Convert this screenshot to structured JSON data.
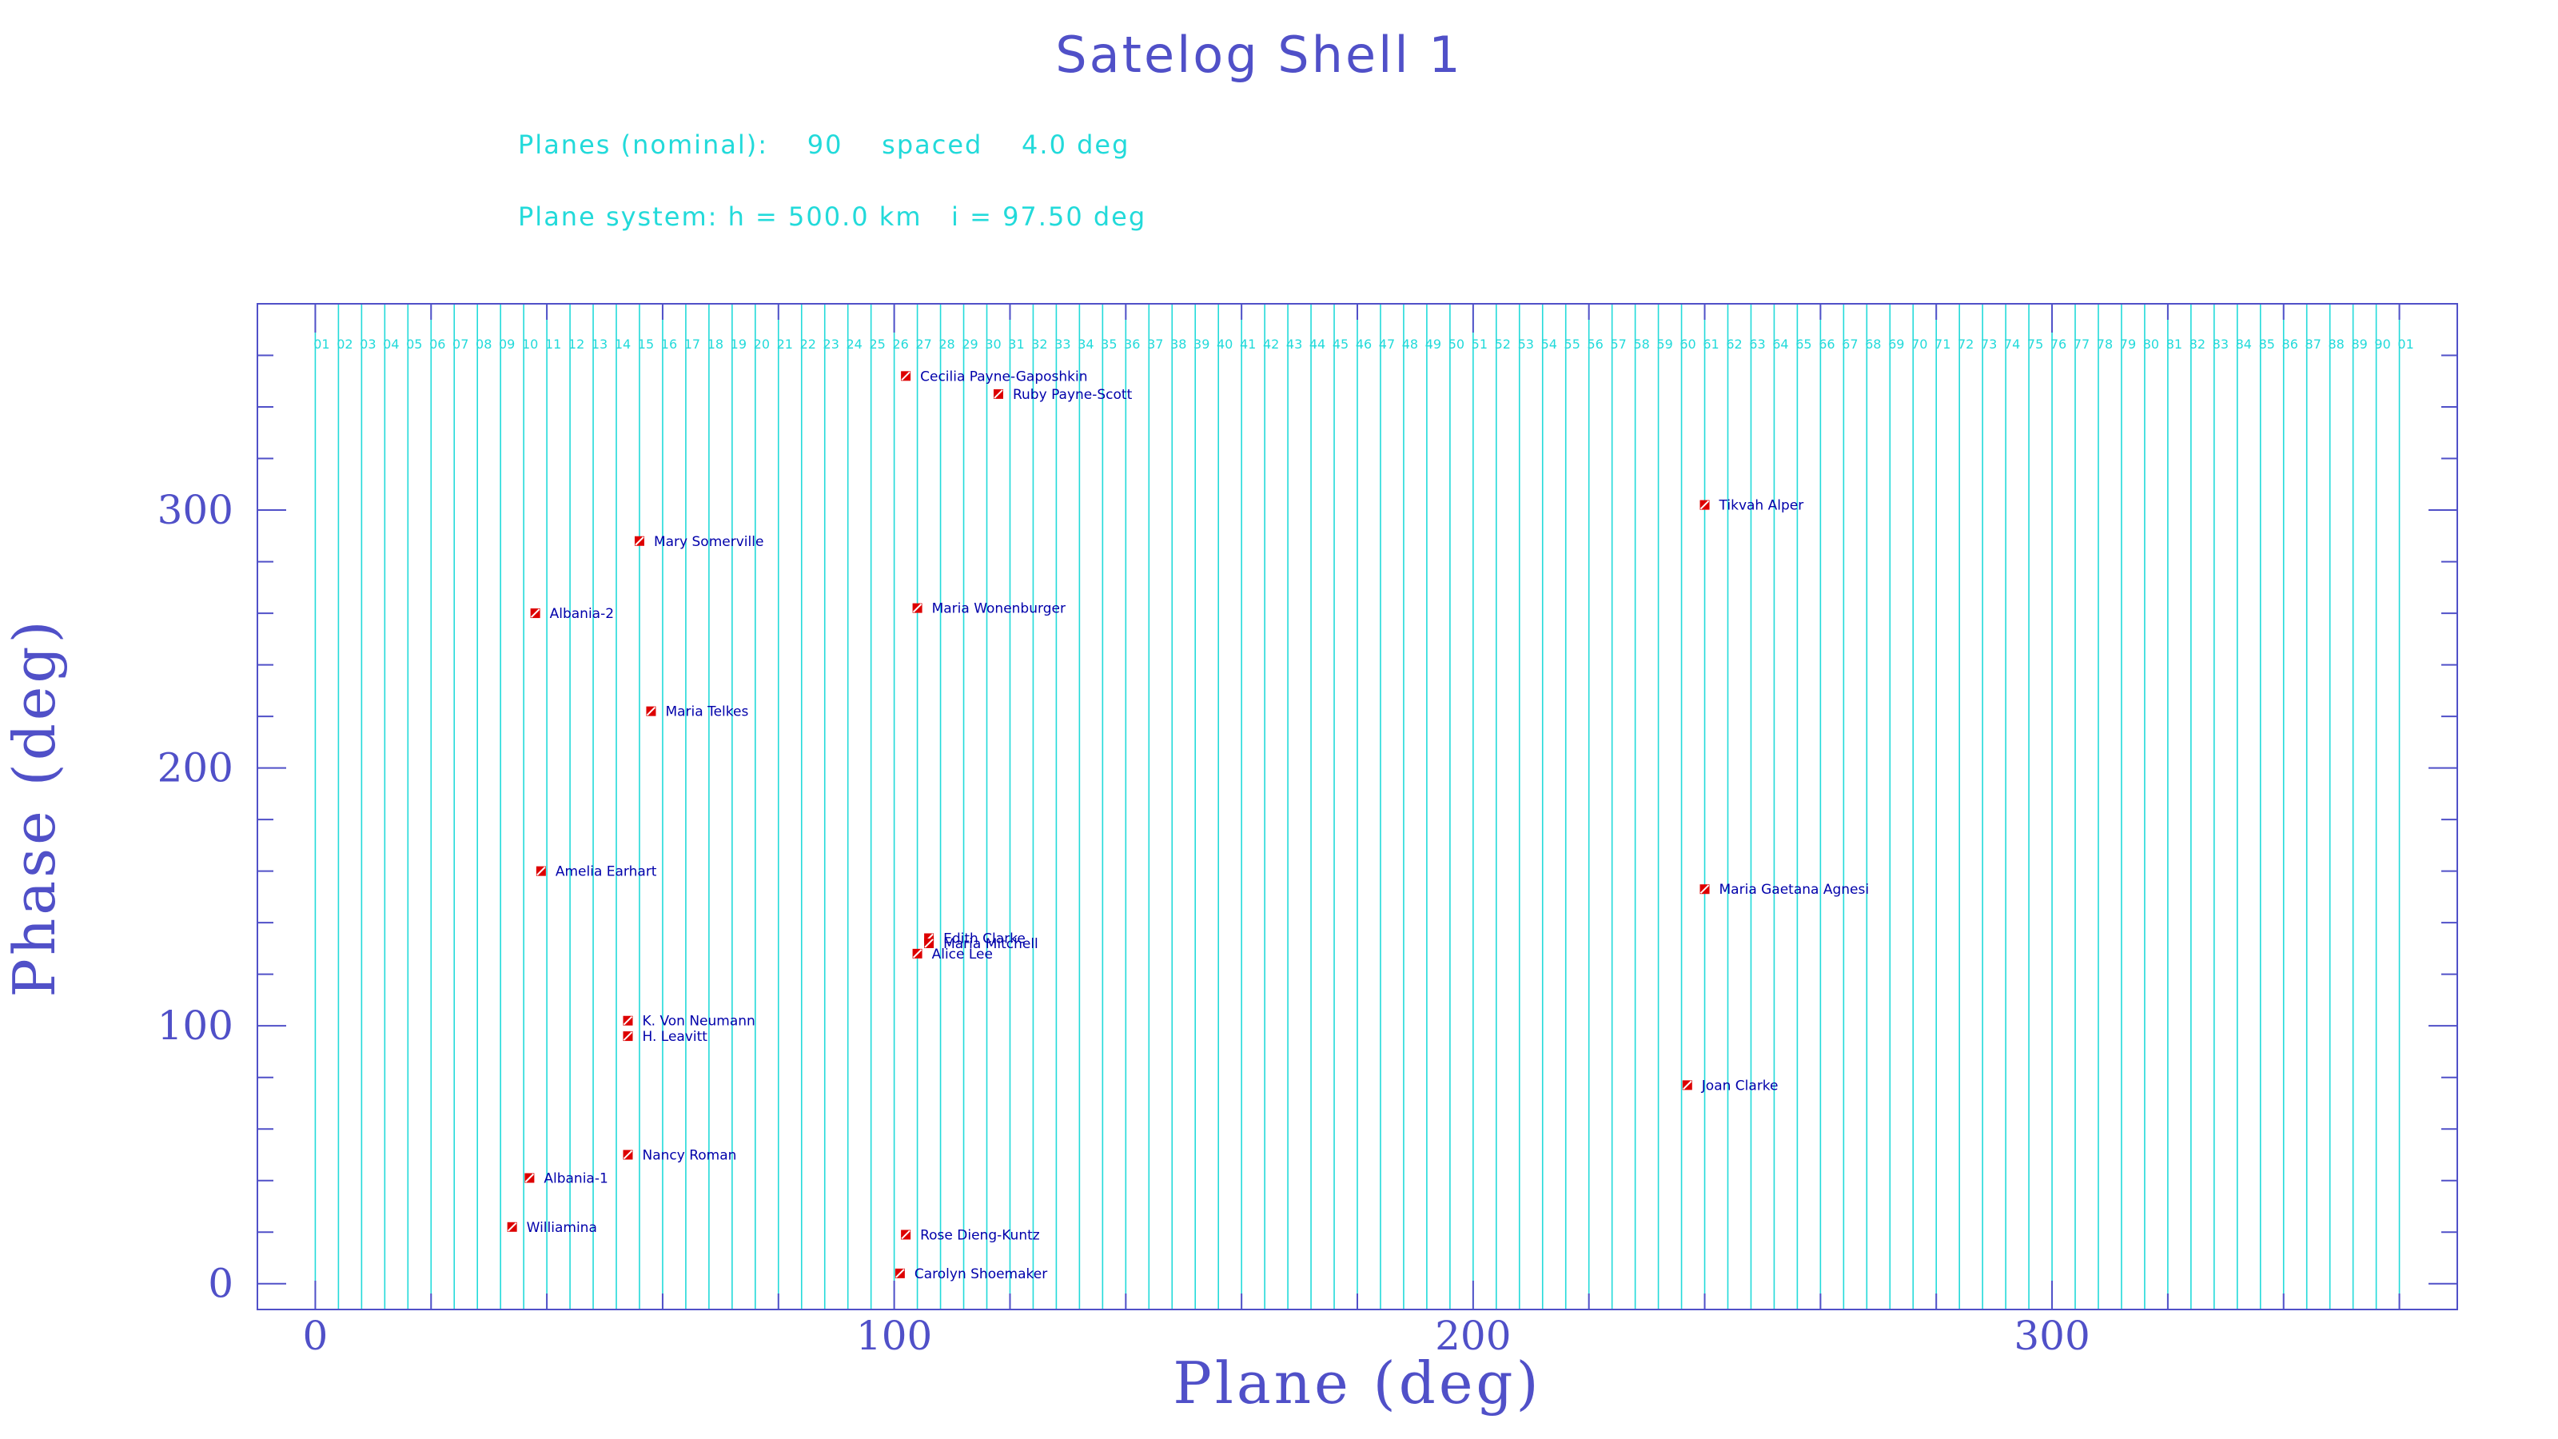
{
  "chart_data": {
    "type": "scatter",
    "title": "Satelog Shell 1",
    "info_lines": [
      "Planes (nominal):    90    spaced    4.0 deg",
      "Plane system: h = 500.0 km   i = 97.50 deg"
    ],
    "xlabel": "Plane (deg)",
    "ylabel": "Phase (deg)",
    "xlim": [
      -10,
      370
    ],
    "ylim": [
      -10,
      380
    ],
    "x_ticks": [
      0,
      100,
      200,
      300
    ],
    "y_ticks": [
      0,
      100,
      200,
      300
    ],
    "x_minor_step": 20,
    "y_minor_step": 20,
    "plane_spacing": 4,
    "plane_labels": [
      "01",
      "02",
      "03",
      "04",
      "05",
      "06",
      "07",
      "08",
      "09",
      "10",
      "11",
      "12",
      "13",
      "14",
      "15",
      "16",
      "17",
      "18",
      "19",
      "20",
      "21",
      "22",
      "23",
      "24",
      "25",
      "26",
      "27",
      "28",
      "29",
      "30",
      "31",
      "32",
      "33",
      "34",
      "35",
      "36",
      "37",
      "38",
      "39",
      "40",
      "41",
      "42",
      "43",
      "44",
      "45",
      "46",
      "47",
      "48",
      "49",
      "50",
      "51",
      "52",
      "53",
      "54",
      "55",
      "56",
      "57",
      "58",
      "59",
      "60",
      "61",
      "62",
      "63",
      "64",
      "65",
      "66",
      "67",
      "68",
      "69",
      "70",
      "71",
      "72",
      "73",
      "74",
      "75",
      "76",
      "77",
      "78",
      "79",
      "80",
      "81",
      "82",
      "83",
      "84",
      "85",
      "86",
      "87",
      "88",
      "89",
      "90",
      "01"
    ],
    "points": [
      {
        "name": "Cecilia Payne-Gaposhkin",
        "x": 102,
        "y": 352
      },
      {
        "name": "Ruby Payne-Scott",
        "x": 118,
        "y": 345
      },
      {
        "name": "Tikvah Alper",
        "x": 240,
        "y": 302
      },
      {
        "name": "Mary Somerville",
        "x": 56,
        "y": 288
      },
      {
        "name": "Maria Wonenburger",
        "x": 104,
        "y": 262
      },
      {
        "name": "Albania-2",
        "x": 38,
        "y": 260
      },
      {
        "name": "Maria Telkes",
        "x": 58,
        "y": 222
      },
      {
        "name": "Amelia Earhart",
        "x": 39,
        "y": 160
      },
      {
        "name": "Maria Gaetana Agnesi",
        "x": 240,
        "y": 153
      },
      {
        "name": "Edith Clarke",
        "x": 106,
        "y": 134
      },
      {
        "name": "Maria Mitchell",
        "x": 106,
        "y": 132
      },
      {
        "name": "Alice Lee",
        "x": 104,
        "y": 128
      },
      {
        "name": "K. Von Neumann",
        "x": 54,
        "y": 102
      },
      {
        "name": "H. Leavitt",
        "x": 54,
        "y": 96
      },
      {
        "name": "Joan Clarke",
        "x": 237,
        "y": 77
      },
      {
        "name": "Nancy Roman",
        "x": 54,
        "y": 50
      },
      {
        "name": "Albania-1",
        "x": 37,
        "y": 41
      },
      {
        "name": "Williamina",
        "x": 34,
        "y": 22
      },
      {
        "name": "Rose Dieng-Kuntz",
        "x": 102,
        "y": 19
      },
      {
        "name": "Carolyn Shoemaker",
        "x": 101,
        "y": 4
      }
    ],
    "colors": {
      "title": "#5050c8",
      "info": "#22dada",
      "frame": "#5050c8",
      "planes": "#22dada",
      "marker": "#dd0000",
      "point_label": "#0000aa"
    }
  }
}
